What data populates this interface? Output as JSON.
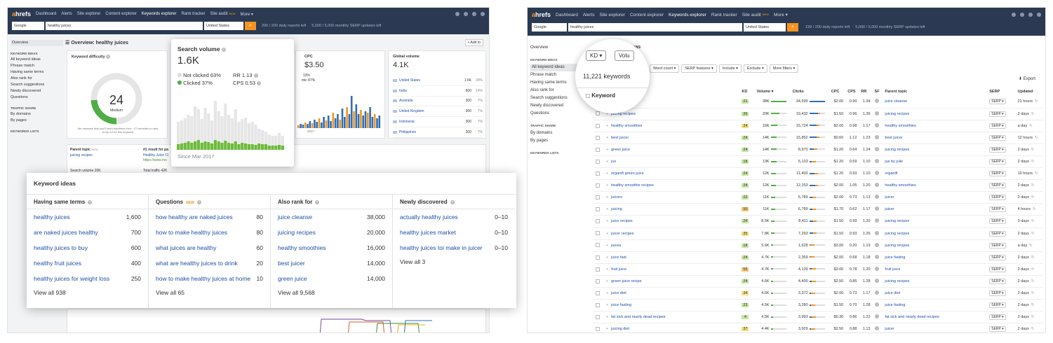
{
  "app": {
    "logo_a": "a",
    "logo_rest": "hrefs"
  },
  "nav": {
    "items": [
      "Dashboard",
      "Alerts",
      "Site explorer",
      "Content explorer",
      "Keywords explorer",
      "Rank tracker",
      "Site audit",
      "More ▾"
    ],
    "new_badge": "NEW"
  },
  "search": {
    "engine": "Google",
    "query": "healthy juices",
    "country": "United States",
    "reports_left_l": "200 / 200 daily reports left",
    "reports_left_r": "199 / 200 daily reports left",
    "serp_left": "5,000 / 5,000 monthly SERP updates left"
  },
  "left": {
    "page_title": "Overview: healthy juices",
    "add_to": "+ Add to",
    "sidebar": {
      "overview": "Overview",
      "h1": "KEYWORD IDEAS",
      "items": [
        "All keyword ideas",
        "Phrase match",
        "Having same terms",
        "Also rank for",
        "Search suggestions",
        "Newly discovered",
        "Questions"
      ],
      "h2": "TRAFFIC SHARE",
      "traffic": [
        "By domains",
        "By pages"
      ],
      "h3": "KEYWORDS LISTS"
    },
    "kd": {
      "title": "Keyword difficulty",
      "value": "24",
      "label": "Medium",
      "note": "We estimate that you'll need backlinks from ~27 websites to rank in top 10 for this keyword",
      "level": 0.24
    },
    "sv": {
      "title": "Search volume",
      "value": "1.6K",
      "not_clicked": "Not clicked 63%",
      "clicked": "Clicked 37%",
      "rr": "RR 1.13",
      "cps": "CPS 0.53",
      "since": "Since Mar 2017"
    },
    "cpc": {
      "title": "CPC",
      "value": "$3.50",
      "p1": "13%",
      "p2": "mic 87%",
      "year": "2017"
    },
    "global": {
      "title": "Global volume",
      "value": "4.1K",
      "rows": [
        [
          "United States",
          "1.6K",
          "39%"
        ],
        [
          "India",
          "600",
          "14%"
        ],
        [
          "Australia",
          "300",
          "7%"
        ],
        [
          "United Kingdom",
          "300",
          "7%"
        ],
        [
          "Indonesia",
          "300",
          "7%"
        ],
        [
          "Philippines",
          "300",
          "7%"
        ]
      ]
    },
    "parent": {
      "title": "Parent topic",
      "beta": "BETA",
      "link": "juicing recipes",
      "sv": "Search volume 20K"
    },
    "result": {
      "title": "#1 result for pa",
      "link": "Healthy Juice Cl",
      "url": "https://www.mo",
      "traffic": "Total traffic 42K"
    }
  },
  "ideas": {
    "title": "Keyword ideas",
    "cols": [
      {
        "h": "Having same terms",
        "new": "",
        "rows": [
          [
            "healthy juices",
            "1,600"
          ],
          [
            "are naked juices healthy",
            "700"
          ],
          [
            "healthy juices to buy",
            "600"
          ],
          [
            "healthy fruit juices",
            "400"
          ],
          [
            "healthy juices for weight loss",
            "250"
          ]
        ],
        "all": "View all 938"
      },
      {
        "h": "Questions",
        "new": "NEW",
        "rows": [
          [
            "how healthy are naked juices",
            "80"
          ],
          [
            "how to make healthy juices",
            "80"
          ],
          [
            "what juices are healthy",
            "60"
          ],
          [
            "what are healthy juices to drink",
            "20"
          ],
          [
            "how to make healthy juices at home",
            "10"
          ]
        ],
        "all": "View all 65"
      },
      {
        "h": "Also rank for",
        "new": "",
        "rows": [
          [
            "juice cleanse",
            "38,000"
          ],
          [
            "juicing recipes",
            "20,000"
          ],
          [
            "healthy smoothies",
            "16,000"
          ],
          [
            "best juicer",
            "14,000"
          ],
          [
            "green juice",
            "14,000"
          ]
        ],
        "all": "View all 9,568"
      },
      {
        "h": "Newly discovered",
        "new": "",
        "rows": [
          [
            "actually healthy juices",
            "0–10"
          ],
          [
            "healthy juices market",
            "0–10"
          ],
          [
            "healthy juices toi make in juicer",
            "0–10"
          ]
        ],
        "all": "View all 3"
      }
    ]
  },
  "right": {
    "page_title": "All keyword ideas",
    "kd_btn": "KD ▾",
    "vol_btn": "Volu",
    "count": "11,221 keywords",
    "kw_head": "Keyword",
    "filters": [
      "Word count ▾",
      "SERP features ▾",
      "Include ▾",
      "Exclude ▾",
      "More filters ▾"
    ],
    "export": "Export",
    "headers": [
      "KD",
      "Volume ▾",
      "Clicks",
      "CPC",
      "CPS",
      "RR",
      "SF",
      "Parent topic",
      "SERP",
      "Updated"
    ],
    "serp_btn": "SERP ▾",
    "rows": [
      [
        "juice cleanse",
        "21",
        "38K",
        "34,599",
        "$2.00",
        "0.90",
        "1.34",
        "juice cleanse",
        "21 hours"
      ],
      [
        "juicing recipes",
        "26",
        "20K",
        "19,432",
        "$1.50",
        "0.96",
        "1.35",
        "juicing recipes",
        "2 days"
      ],
      [
        "healthy smoothies",
        "34",
        "16K",
        "15,724",
        "$2.00",
        "0.98",
        "1.17",
        "healthy smoothies",
        "a day"
      ],
      [
        "best juicer",
        "24",
        "14K",
        "15,852",
        "$0.60",
        "1.12",
        "1.23",
        "best juicer",
        "12 hours"
      ],
      [
        "green juice",
        "24",
        "14K",
        "8,970",
        "$1.20",
        "0.64",
        "1.24",
        "juicing recipes",
        "2 days"
      ],
      [
        "jus",
        "18",
        "13K",
        "5,133",
        "$1.20",
        "0.59",
        "1.10",
        "jus by julie",
        "2 days"
      ],
      [
        "organifi green juice",
        "24",
        "12K",
        "11,403",
        "$1.20",
        "0.93",
        "1.10",
        "organifi",
        "10 hours"
      ],
      [
        "healthy smoothie recipes",
        "24",
        "12K",
        "12,153",
        "$2.00",
        "1.05",
        "1.20",
        "healthy smoothies",
        "2 days"
      ],
      [
        "juicers",
        "22",
        "11K",
        "6,789",
        "$2.00",
        "0.73",
        "1.13",
        "juicer",
        "2 days"
      ],
      [
        "juicing",
        "50",
        "11K",
        "6,789",
        "$1.70",
        "0.62",
        "1.17",
        "juicer",
        "4 hours"
      ],
      [
        "juice recipes",
        "24",
        "8.5K",
        "8,411",
        "$1.50",
        "0.99",
        "1.20",
        "juicing recipes",
        "3 days"
      ],
      [
        "juicer recipes",
        "35",
        "7.8K",
        "7,293",
        "$1.50",
        "0.93",
        "1.26",
        "juicing recipes",
        "2 days"
      ],
      [
        "juices",
        "18",
        "5.6K",
        "1,628",
        "$3.00",
        "0.20",
        "1.19",
        "juicing recipes",
        "a day"
      ],
      [
        "juice fast",
        "24",
        "4.7K",
        "2,359",
        "$2.00",
        "0.58",
        "1.18",
        "juice fasting",
        "2 days"
      ],
      [
        "fruit juice",
        "55",
        "4.7K",
        "4,139",
        "$3.00",
        "0.78",
        "1.20",
        "fruit juice",
        "2 days"
      ],
      [
        "green juice recipe",
        "24",
        "4.6K",
        "4,400",
        "$2.50",
        "0.85",
        "1.28",
        "juicing recipes",
        "2 days"
      ],
      [
        "juice diet",
        "34",
        "4.6K",
        "3,372",
        "$2.00",
        "0.73",
        "1.17",
        "juice diet",
        "2 days"
      ],
      [
        "juice fasting",
        "23",
        "4.5K",
        "3,280",
        "$1.50",
        "0.70",
        "1.28",
        "juice fasting",
        "2 days"
      ],
      [
        "fat sick and nearly dead recipes",
        "4",
        "4.5K",
        "3,993",
        "$0.30",
        "0.86",
        "1.22",
        "fat sick and nearly dead recipes",
        "2 days"
      ],
      [
        "juicing diet",
        "37",
        "4.4K",
        "3,929",
        "$2.50",
        "0.88",
        "1.13",
        "juicer",
        "2 days"
      ]
    ]
  },
  "colors": {
    "nav": "#2b3a52",
    "orange": "#f7941d",
    "link": "#1f4fa4",
    "green": "#7ac143",
    "blue": "#2f6fb5",
    "kd_green": "#c6e5a2",
    "kd_yellow": "#f3e07a",
    "kd_orange": "#f7c774"
  }
}
